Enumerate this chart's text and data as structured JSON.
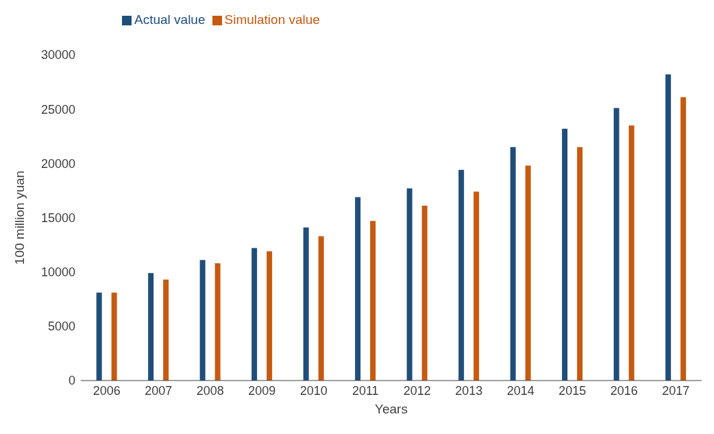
{
  "chart_data": {
    "type": "bar",
    "xlabel": "Years",
    "ylabel": "100 million yuan",
    "categories": [
      "2006",
      "2007",
      "2008",
      "2009",
      "2010",
      "2011",
      "2012",
      "2013",
      "2014",
      "2015",
      "2016",
      "2017"
    ],
    "series": [
      {
        "name": "Actual value",
        "color": "#1f4e79",
        "values": [
          8100,
          9900,
          11100,
          12200,
          14100,
          16900,
          17700,
          19400,
          21500,
          23200,
          25100,
          28200
        ]
      },
      {
        "name": "Simulation value",
        "color": "#c55a11",
        "values": [
          8100,
          9300,
          10800,
          11900,
          13300,
          14700,
          16100,
          17400,
          19800,
          21500,
          23500,
          26100
        ]
      }
    ],
    "ylim": [
      0,
      30000
    ],
    "yticks": [
      0,
      5000,
      10000,
      15000,
      20000,
      25000,
      30000
    ],
    "grid": false,
    "legend": "top left"
  }
}
